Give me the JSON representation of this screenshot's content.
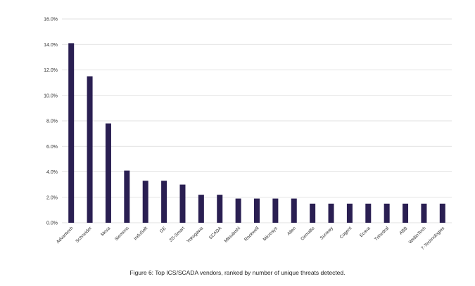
{
  "figure": {
    "caption": "Figure 6: Top ICS/SCADA vendors, ranked by number of unique threats detected."
  },
  "colors": {
    "bar": "#2a1f52",
    "grid": "#d9d9d9",
    "axis_text": "#333333",
    "background": "#ffffff"
  },
  "chart_data": {
    "type": "bar",
    "title": "",
    "xlabel": "",
    "ylabel": "",
    "ylim": [
      0,
      16
    ],
    "y_ticks": [
      0,
      2,
      4,
      6,
      8,
      10,
      12,
      14,
      16
    ],
    "y_tick_labels": [
      "0.0%",
      "2.0%",
      "4.0%",
      "6.0%",
      "8.0%",
      "10.0%",
      "12.0%",
      "14.0%",
      "16.0%"
    ],
    "grid": true,
    "categories": [
      "Advantech",
      "Schneider",
      "Moxa",
      "Siemens",
      "InduSoft",
      "GE",
      "3S-Smart",
      "Yokogawa",
      "SCADA",
      "Mitsubishi",
      "Rockwell",
      "Microsys",
      "Allen",
      "Gemalto",
      "Sunway",
      "Cogent",
      "Ecava",
      "Trihedral",
      "ABB",
      "WellinTech",
      "7-Technologies"
    ],
    "values": [
      14.1,
      11.5,
      7.8,
      4.1,
      3.3,
      3.3,
      3.0,
      2.2,
      2.2,
      1.9,
      1.9,
      1.9,
      1.9,
      1.5,
      1.5,
      1.5,
      1.5,
      1.5,
      1.5,
      1.5,
      1.5
    ],
    "unit": "%"
  }
}
